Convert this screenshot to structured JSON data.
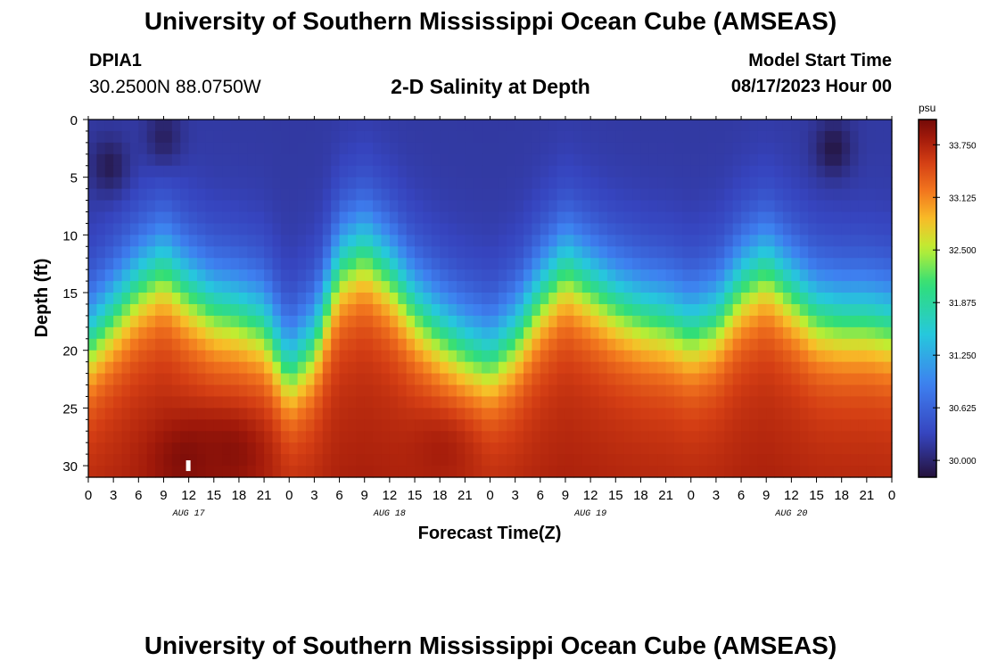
{
  "header": {
    "title": "University of Southern Mississippi Ocean Cube (AMSEAS)",
    "station_id": "DPIA1",
    "coordinates": "30.2500N  88.0750W",
    "subtitle": "2-D Salinity at Depth",
    "model_label": "Model Start Time",
    "model_date": "08/17/2023 Hour 00"
  },
  "footer": {
    "title": "University of Southern Mississippi Ocean Cube (AMSEAS)"
  },
  "colors": {
    "axis": "#000000",
    "background": "#ffffff",
    "marker": "#ffffff"
  },
  "chart_data": {
    "type": "heatmap",
    "title": "2-D Salinity at Depth",
    "xlabel": "Forecast Time(Z)",
    "ylabel": "Depth (ft)",
    "x_range_hours": [
      0,
      96
    ],
    "y_range_ft": [
      0,
      31
    ],
    "y_ticks": [
      "0",
      "5",
      "10",
      "15",
      "20",
      "25",
      "30"
    ],
    "x_tick_labels": [
      "0",
      "3",
      "6",
      "9",
      "12",
      "15",
      "18",
      "21",
      "0",
      "3",
      "6",
      "9",
      "12",
      "15",
      "18",
      "21",
      "0",
      "3",
      "6",
      "9",
      "12",
      "15",
      "18",
      "21",
      "0",
      "3",
      "6",
      "9",
      "12",
      "15",
      "18",
      "21",
      "0"
    ],
    "day_labels": [
      "AUG 17",
      "AUG 18",
      "AUG 19",
      "AUG 20"
    ],
    "colorbar": {
      "unit": "psu",
      "range": [
        29.8,
        34.05
      ],
      "tick_labels": [
        "33.750",
        "33.125",
        "32.500",
        "31.875",
        "31.250",
        "30.625",
        "30.000"
      ],
      "tick_values": [
        33.75,
        33.125,
        32.5,
        31.875,
        31.25,
        30.625,
        30.0
      ]
    },
    "upper_layer_psu": 30.2,
    "lower_layer_psu": 33.55,
    "halocline_depth_ft": {
      "hours": [
        0,
        3,
        6,
        9,
        12,
        15,
        18,
        21,
        24,
        27,
        30,
        33,
        36,
        39,
        42,
        45,
        48,
        51,
        54,
        57,
        60,
        63,
        66,
        69,
        72,
        75,
        78,
        81,
        84,
        87,
        90,
        93,
        96
      ],
      "depth": [
        19,
        16.5,
        14,
        12.5,
        14.5,
        16,
        16.5,
        17.5,
        21.5,
        19,
        12.5,
        11,
        13,
        16,
        18,
        19.5,
        20.5,
        18.5,
        15,
        12.5,
        14,
        15.5,
        16.5,
        17,
        18,
        17,
        14,
        12.5,
        14.5,
        16.5,
        17,
        17,
        17.5
      ]
    },
    "fresh_patches": [
      {
        "hour": 2.5,
        "depth_ft": 4,
        "psu": 29.9
      },
      {
        "hour": 9,
        "depth_ft": 1.5,
        "psu": 29.95
      },
      {
        "hour": 89,
        "depth_ft": 2.5,
        "psu": 29.85
      }
    ],
    "salty_patches": [
      {
        "hour": 12,
        "depth_ft": 29.5,
        "psu": 34.0
      },
      {
        "hour": 17,
        "depth_ft": 29,
        "psu": 33.95
      },
      {
        "hour": 42,
        "depth_ft": 29,
        "psu": 33.8
      }
    ],
    "marker": {
      "hour": 12,
      "depth_ft": 30
    }
  }
}
